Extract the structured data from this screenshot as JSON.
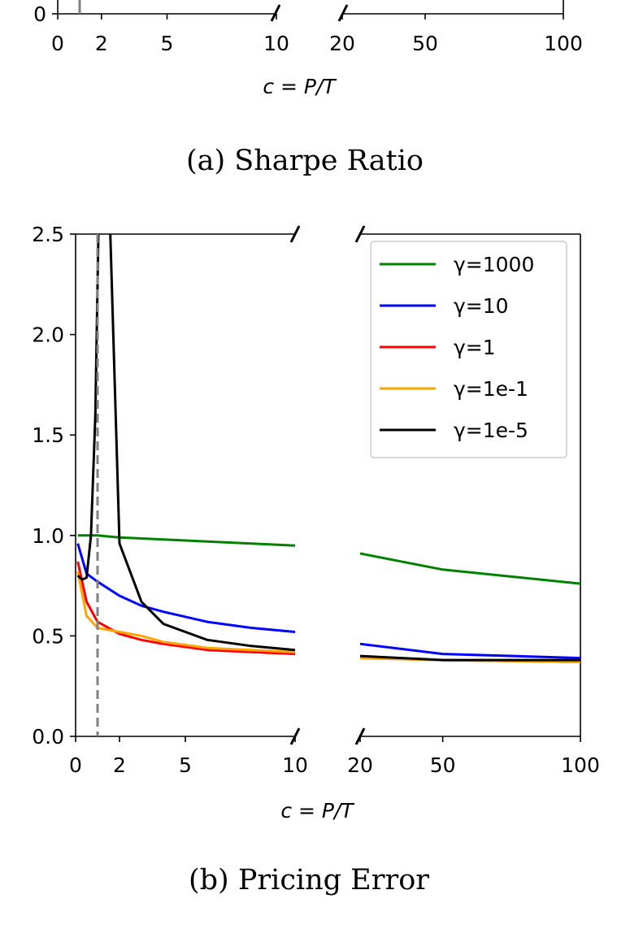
{
  "captions": {
    "a": "(a) Sharpe Ratio",
    "b": "(b) Pricing Error"
  },
  "chart_data": [
    {
      "type": "line",
      "title": "(a) Sharpe Ratio",
      "xlabel": "c = P/T",
      "x_ticks_left": [
        0,
        2,
        5,
        10
      ],
      "x_ticks_right": [
        20,
        50,
        100
      ],
      "y_ticks": [
        0
      ],
      "reference_line_x": 1,
      "series": []
    },
    {
      "type": "line",
      "title": "(b) Pricing Error",
      "xlabel": "c = P/T",
      "xlim_left": [
        0,
        10
      ],
      "xlim_right": [
        20,
        100
      ],
      "ylim": [
        0,
        2.5
      ],
      "y_ticks": [
        0.0,
        0.5,
        1.0,
        1.5,
        2.0,
        2.5
      ],
      "y_tick_labels": [
        "0.0",
        "0.5",
        "1.0",
        "1.5",
        "2.0",
        "2.5"
      ],
      "x_ticks_left": [
        0,
        2,
        5,
        10
      ],
      "x_ticks_right": [
        20,
        50,
        100
      ],
      "broken_x_axis": true,
      "reference_line_x": 1,
      "legend_position": "top-right",
      "series": [
        {
          "name": "γ=1000",
          "color": "#008000",
          "left": [
            [
              0.1,
              1.0
            ],
            [
              1,
              1.0
            ],
            [
              2,
              0.99
            ],
            [
              4,
              0.98
            ],
            [
              6,
              0.97
            ],
            [
              8,
              0.96
            ],
            [
              10,
              0.95
            ]
          ],
          "right": [
            [
              20,
              0.91
            ],
            [
              50,
              0.83
            ],
            [
              100,
              0.76
            ]
          ]
        },
        {
          "name": "γ=10",
          "color": "#0000ff",
          "left": [
            [
              0.1,
              0.96
            ],
            [
              0.5,
              0.81
            ],
            [
              1,
              0.77
            ],
            [
              2,
              0.7
            ],
            [
              3,
              0.65
            ],
            [
              4,
              0.62
            ],
            [
              6,
              0.57
            ],
            [
              8,
              0.54
            ],
            [
              10,
              0.52
            ]
          ],
          "right": [
            [
              20,
              0.46
            ],
            [
              50,
              0.41
            ],
            [
              100,
              0.39
            ]
          ]
        },
        {
          "name": "γ=1",
          "color": "#ff0000",
          "left": [
            [
              0.1,
              0.87
            ],
            [
              0.5,
              0.67
            ],
            [
              1,
              0.57
            ],
            [
              2,
              0.51
            ],
            [
              3,
              0.48
            ],
            [
              4,
              0.46
            ],
            [
              6,
              0.43
            ],
            [
              8,
              0.42
            ],
            [
              10,
              0.41
            ]
          ],
          "right": [
            [
              20,
              0.39
            ],
            [
              50,
              0.38
            ],
            [
              100,
              0.37
            ]
          ]
        },
        {
          "name": "γ=1e-1",
          "color": "#ffa500",
          "left": [
            [
              0.1,
              0.82
            ],
            [
              0.5,
              0.6
            ],
            [
              1,
              0.54
            ],
            [
              2,
              0.52
            ],
            [
              3,
              0.5
            ],
            [
              4,
              0.47
            ],
            [
              6,
              0.44
            ],
            [
              8,
              0.43
            ],
            [
              10,
              0.42
            ]
          ],
          "right": [
            [
              20,
              0.39
            ],
            [
              50,
              0.38
            ],
            [
              100,
              0.37
            ]
          ]
        },
        {
          "name": "γ=1e-5",
          "color": "#000000",
          "left": [
            [
              0.1,
              0.8
            ],
            [
              0.3,
              0.78
            ],
            [
              0.5,
              0.79
            ],
            [
              0.7,
              1.0
            ],
            [
              0.9,
              1.6
            ],
            [
              1.1,
              2.9
            ],
            [
              1.5,
              2.8
            ],
            [
              2,
              0.96
            ],
            [
              3,
              0.67
            ],
            [
              4,
              0.56
            ],
            [
              5,
              0.52
            ],
            [
              6,
              0.48
            ],
            [
              8,
              0.45
            ],
            [
              10,
              0.43
            ]
          ],
          "right": [
            [
              20,
              0.4
            ],
            [
              50,
              0.38
            ],
            [
              100,
              0.38
            ]
          ]
        }
      ]
    }
  ]
}
